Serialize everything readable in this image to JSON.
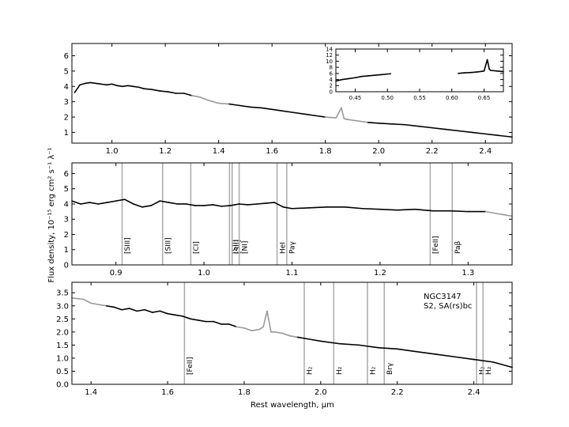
{
  "ylabel": "Flux density, 10⁻¹⁵ erg cm² s⁻¹ λ⁻¹",
  "xlabel": "Rest wavelength, μm",
  "colors": {
    "spectrum": "#000000",
    "telluric": "#999999",
    "marker": "#aaaaaa"
  },
  "chart_data": [
    {
      "type": "line",
      "panel": "top",
      "xlim": [
        0.85,
        2.5
      ],
      "ylim": [
        0.3,
        6.8
      ],
      "xticks": [
        "1.0",
        "1.2",
        "1.4",
        "1.6",
        "1.8",
        "2.0",
        "2.2",
        "2.4"
      ],
      "yticks": [
        "1",
        "2",
        "3",
        "4",
        "5",
        "6"
      ],
      "series": [
        {
          "x": [
            0.86,
            0.88,
            0.9,
            0.92,
            0.94,
            0.96,
            0.98,
            1.0,
            1.02,
            1.04,
            1.06,
            1.08,
            1.1,
            1.12,
            1.15,
            1.18,
            1.21,
            1.24,
            1.27,
            1.3,
            1.33,
            1.36,
            1.4,
            1.44,
            1.48,
            1.52,
            1.56,
            1.6,
            1.64,
            1.68,
            1.72,
            1.76,
            1.8
          ],
          "y": [
            3.6,
            4.1,
            4.2,
            4.25,
            4.2,
            4.15,
            4.1,
            4.15,
            4.05,
            4.0,
            4.05,
            4.0,
            3.95,
            3.85,
            3.8,
            3.7,
            3.65,
            3.55,
            3.55,
            3.4,
            3.3,
            3.1,
            2.9,
            2.85,
            2.75,
            2.65,
            2.6,
            2.5,
            2.4,
            2.3,
            2.2,
            2.1,
            2.0
          ]
        },
        {
          "x": [
            1.8,
            1.84,
            1.86,
            1.87,
            1.88,
            1.92,
            1.96,
            2.0,
            2.05,
            2.1,
            2.15,
            2.2,
            2.25,
            2.3,
            2.35,
            2.4,
            2.45,
            2.5
          ],
          "y": [
            2.0,
            1.95,
            2.6,
            1.9,
            1.85,
            1.75,
            1.65,
            1.6,
            1.55,
            1.5,
            1.4,
            1.3,
            1.2,
            1.1,
            1.0,
            0.9,
            0.8,
            0.7
          ]
        }
      ],
      "gray_ranges": [
        [
          1.29,
          1.43
        ],
        [
          1.79,
          1.94
        ]
      ],
      "inset": {
        "xlim": [
          0.42,
          0.68
        ],
        "ylim": [
          0,
          14
        ],
        "xticks": [
          "0.45",
          "0.50",
          "0.55",
          "0.60",
          "0.65"
        ],
        "yticks": [
          "0",
          "2",
          "4",
          "6",
          "8",
          "10",
          "12",
          "14"
        ],
        "segments": [
          {
            "x": [
              0.42,
              0.43,
              0.44,
              0.45,
              0.46,
              0.47,
              0.48,
              0.49,
              0.5,
              0.505
            ],
            "y": [
              3.5,
              4.0,
              4.3,
              4.6,
              5.0,
              5.2,
              5.4,
              5.6,
              5.8,
              5.9
            ]
          },
          {
            "x": [
              0.61,
              0.62,
              0.63,
              0.64,
              0.65,
              0.655,
              0.658,
              0.66,
              0.67,
              0.68
            ],
            "y": [
              6.0,
              6.2,
              6.3,
              6.5,
              6.8,
              10.5,
              7.5,
              7.0,
              6.8,
              6.6
            ]
          }
        ]
      }
    },
    {
      "type": "line",
      "panel": "middle",
      "xlim": [
        0.85,
        1.35
      ],
      "ylim": [
        0,
        6.7
      ],
      "xticks": [
        "0.9",
        "1.0",
        "1.1",
        "1.2",
        "1.3"
      ],
      "yticks": [
        "0",
        "1",
        "2",
        "3",
        "4",
        "5",
        "6"
      ],
      "series": [
        {
          "x": [
            0.85,
            0.86,
            0.87,
            0.88,
            0.89,
            0.9,
            0.91,
            0.92,
            0.93,
            0.94,
            0.95,
            0.96,
            0.97,
            0.98,
            0.99,
            1.0,
            1.01,
            1.02,
            1.03,
            1.04,
            1.05,
            1.06,
            1.07,
            1.08,
            1.09,
            1.1,
            1.12,
            1.14,
            1.16,
            1.18,
            1.2,
            1.22,
            1.24,
            1.26,
            1.28,
            1.3,
            1.32,
            1.34,
            1.35
          ],
          "y": [
            4.2,
            4.0,
            4.1,
            4.0,
            4.1,
            4.2,
            4.3,
            4.0,
            3.8,
            3.9,
            4.2,
            4.1,
            4.0,
            4.0,
            3.9,
            3.9,
            3.95,
            3.85,
            3.9,
            4.0,
            3.95,
            4.0,
            4.05,
            4.1,
            3.8,
            3.7,
            3.75,
            3.8,
            3.8,
            3.7,
            3.65,
            3.6,
            3.65,
            3.55,
            3.55,
            3.5,
            3.5,
            3.3,
            3.2
          ]
        }
      ],
      "gray_ranges": [
        [
          1.32,
          1.35
        ]
      ],
      "lines": [
        {
          "x": 0.907,
          "label": "[SIII]"
        },
        {
          "x": 0.953,
          "label": "[SIII]"
        },
        {
          "x": 0.985,
          "label": "[CI]"
        },
        {
          "x": 1.029,
          "label": "[SII]"
        },
        {
          "x": 1.032,
          "label": "[SII]"
        },
        {
          "x": 1.04,
          "label": "[NI]"
        },
        {
          "x": 1.083,
          "label": "HeI"
        },
        {
          "x": 1.094,
          "label": "Paγ"
        },
        {
          "x": 1.257,
          "label": "[FeII]"
        },
        {
          "x": 1.282,
          "label": "Paβ"
        }
      ]
    },
    {
      "type": "line",
      "panel": "bottom",
      "xlim": [
        1.35,
        2.5
      ],
      "ylim": [
        0,
        3.9
      ],
      "xticks": [
        "1.4",
        "1.6",
        "1.8",
        "2.0",
        "2.2",
        "2.4"
      ],
      "yticks": [
        "0.0",
        "0.5",
        "1.0",
        "1.5",
        "2.0",
        "2.5",
        "3.0",
        "3.5"
      ],
      "series": [
        {
          "x": [
            1.35,
            1.38,
            1.4,
            1.42,
            1.44,
            1.46,
            1.48,
            1.5,
            1.52,
            1.54,
            1.56,
            1.58,
            1.6,
            1.62,
            1.64,
            1.66,
            1.68,
            1.7,
            1.72,
            1.74,
            1.76,
            1.78,
            1.8,
            1.82,
            1.84,
            1.85,
            1.86,
            1.87,
            1.88,
            1.9,
            1.92,
            1.94,
            1.96,
            1.98,
            2.0,
            2.05,
            2.1,
            2.15,
            2.2,
            2.25,
            2.3,
            2.35,
            2.4,
            2.45,
            2.5
          ],
          "y": [
            3.3,
            3.25,
            3.1,
            3.05,
            3.0,
            2.95,
            2.85,
            2.9,
            2.8,
            2.85,
            2.75,
            2.8,
            2.7,
            2.65,
            2.6,
            2.5,
            2.45,
            2.4,
            2.4,
            2.3,
            2.3,
            2.2,
            2.15,
            2.05,
            2.1,
            2.2,
            2.8,
            2.0,
            2.0,
            1.95,
            1.85,
            1.8,
            1.75,
            1.7,
            1.65,
            1.55,
            1.5,
            1.4,
            1.35,
            1.25,
            1.15,
            1.05,
            0.95,
            0.85,
            0.65
          ]
        }
      ],
      "gray_ranges": [
        [
          1.35,
          1.44
        ],
        [
          1.78,
          1.94
        ]
      ],
      "lines": [
        {
          "x": 1.644,
          "label": "[FeII]"
        },
        {
          "x": 1.957,
          "label": "H₂"
        },
        {
          "x": 2.034,
          "label": "H₂"
        },
        {
          "x": 2.122,
          "label": "H₂"
        },
        {
          "x": 2.166,
          "label": "Brγ"
        },
        {
          "x": 2.407,
          "label": "H₂"
        },
        {
          "x": 2.424,
          "label": "H₂"
        }
      ],
      "annotation": [
        "NGC3147",
        "S2,  SA(rs)bc"
      ]
    }
  ]
}
